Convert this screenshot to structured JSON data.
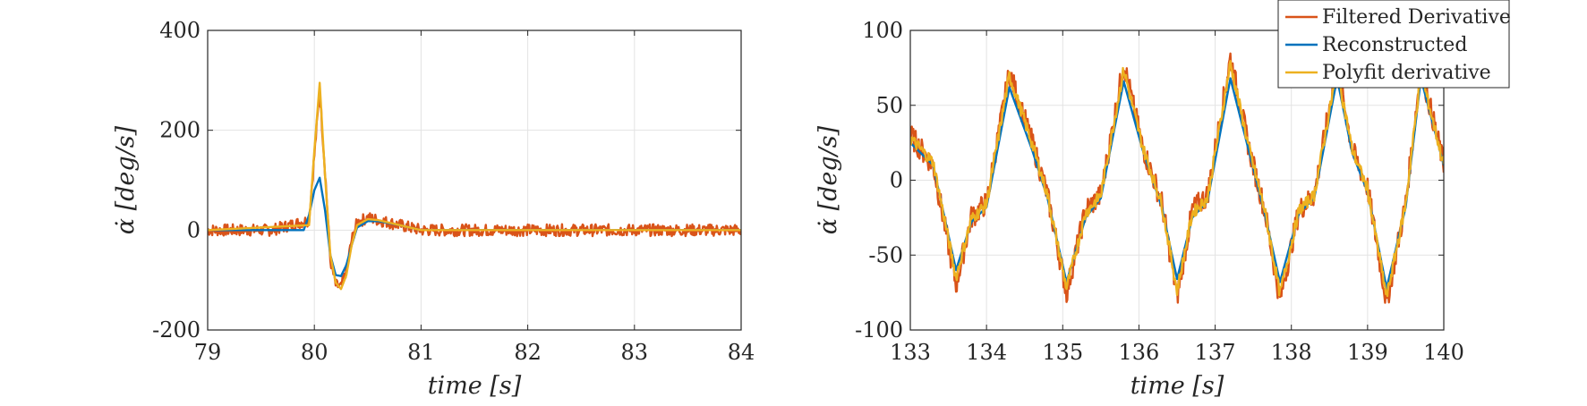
{
  "chart_data": [
    {
      "type": "line",
      "xlabel": "time [s]",
      "ylabel": "α̇ [deg/s]",
      "xlim": [
        79,
        84
      ],
      "ylim": [
        -200,
        400
      ],
      "xticks": [
        "79",
        "80",
        "81",
        "82",
        "83",
        "84"
      ],
      "yticks": [
        "-200",
        "0",
        "200",
        "400"
      ],
      "grid": true,
      "legend": "none",
      "series": [
        {
          "name": "Filtered Derivative",
          "color": "#D95319",
          "x": [
            79.0,
            79.3,
            79.6,
            79.95,
            80.0,
            80.05,
            80.1,
            80.15,
            80.2,
            80.25,
            80.3,
            80.35,
            80.4,
            80.5,
            80.6,
            80.8,
            81.0,
            81.5,
            82.0,
            82.5,
            83.0,
            83.5,
            84.0
          ],
          "y": [
            0,
            0,
            0,
            20,
            150,
            280,
            120,
            -60,
            -110,
            -115,
            -80,
            -20,
            15,
            25,
            20,
            10,
            0,
            0,
            0,
            0,
            0,
            0,
            0
          ],
          "noise": 12
        },
        {
          "name": "Reconstructed",
          "color": "#0072BD",
          "x": [
            79.0,
            79.9,
            79.95,
            80.0,
            80.05,
            80.1,
            80.15,
            80.2,
            80.25,
            80.3,
            80.35,
            80.4,
            80.5,
            80.6,
            80.8,
            81.0,
            82.0,
            83.0,
            84.0
          ],
          "y": [
            0,
            0,
            30,
            80,
            105,
            40,
            -50,
            -90,
            -92,
            -70,
            -30,
            5,
            18,
            18,
            10,
            0,
            0,
            0,
            0
          ],
          "noise": 0
        },
        {
          "name": "Polyfit derivative",
          "color": "#EDB120",
          "x": [
            79.0,
            79.95,
            80.0,
            80.05,
            80.1,
            80.15,
            80.2,
            80.25,
            80.3,
            80.35,
            80.4,
            80.5,
            80.6,
            80.8,
            81.0,
            82.0,
            83.0,
            84.0
          ],
          "y": [
            0,
            10,
            160,
            295,
            110,
            -50,
            -105,
            -118,
            -90,
            -30,
            10,
            22,
            20,
            10,
            0,
            0,
            0,
            0
          ],
          "noise": 0
        }
      ]
    },
    {
      "type": "line",
      "xlabel": "time [s]",
      "ylabel": "α̇ [deg/s]",
      "xlim": [
        133,
        140
      ],
      "ylim": [
        -100,
        100
      ],
      "xticks": [
        "133",
        "134",
        "135",
        "136",
        "137",
        "138",
        "139",
        "140"
      ],
      "yticks": [
        "-100",
        "-50",
        "0",
        "50",
        "100"
      ],
      "grid": true,
      "legend": "top-right",
      "series": [
        {
          "name": "Filtered Derivative",
          "color": "#D95319",
          "x": [
            133.0,
            133.3,
            133.6,
            133.8,
            134.0,
            134.3,
            134.6,
            134.8,
            135.05,
            135.3,
            135.5,
            135.8,
            136.05,
            136.3,
            136.5,
            136.7,
            136.9,
            137.2,
            137.45,
            137.65,
            137.85,
            138.1,
            138.3,
            138.6,
            138.8,
            139.0,
            139.25,
            139.5,
            139.7,
            140.0
          ],
          "y": [
            30,
            10,
            -70,
            -25,
            -15,
            72,
            25,
            -10,
            -75,
            -20,
            -10,
            78,
            22,
            -15,
            -78,
            -20,
            -10,
            82,
            20,
            -20,
            -80,
            -20,
            -10,
            78,
            20,
            -5,
            -82,
            -15,
            75,
            10
          ],
          "noise": 8
        },
        {
          "name": "Reconstructed",
          "color": "#0072BD",
          "x": [
            133.0,
            133.3,
            133.6,
            133.8,
            134.0,
            134.3,
            134.6,
            134.8,
            135.05,
            135.3,
            135.5,
            135.8,
            136.05,
            136.3,
            136.5,
            136.7,
            136.9,
            137.2,
            137.45,
            137.65,
            137.85,
            138.1,
            138.3,
            138.6,
            138.8,
            139.0,
            139.25,
            139.5,
            139.7,
            140.0
          ],
          "y": [
            25,
            10,
            -60,
            -28,
            -18,
            62,
            20,
            -12,
            -68,
            -25,
            -12,
            66,
            20,
            -18,
            -66,
            -25,
            -14,
            68,
            18,
            -22,
            -68,
            -22,
            -12,
            68,
            18,
            -8,
            -72,
            -18,
            68,
            10
          ],
          "noise": 0
        },
        {
          "name": "Polyfit derivative",
          "color": "#EDB120",
          "x": [
            133.0,
            133.3,
            133.6,
            133.8,
            134.0,
            134.3,
            134.6,
            134.8,
            135.05,
            135.3,
            135.5,
            135.8,
            136.05,
            136.3,
            136.5,
            136.7,
            136.9,
            137.2,
            137.45,
            137.65,
            137.85,
            138.1,
            138.3,
            138.6,
            138.8,
            139.0,
            139.25,
            139.5,
            139.7,
            140.0
          ],
          "y": [
            28,
            12,
            -65,
            -26,
            -16,
            70,
            24,
            -10,
            -72,
            -22,
            -10,
            74,
            22,
            -16,
            -74,
            -22,
            -12,
            78,
            20,
            -20,
            -76,
            -20,
            -10,
            74,
            20,
            -6,
            -78,
            -16,
            72,
            10
          ],
          "noise": 4
        }
      ]
    }
  ]
}
